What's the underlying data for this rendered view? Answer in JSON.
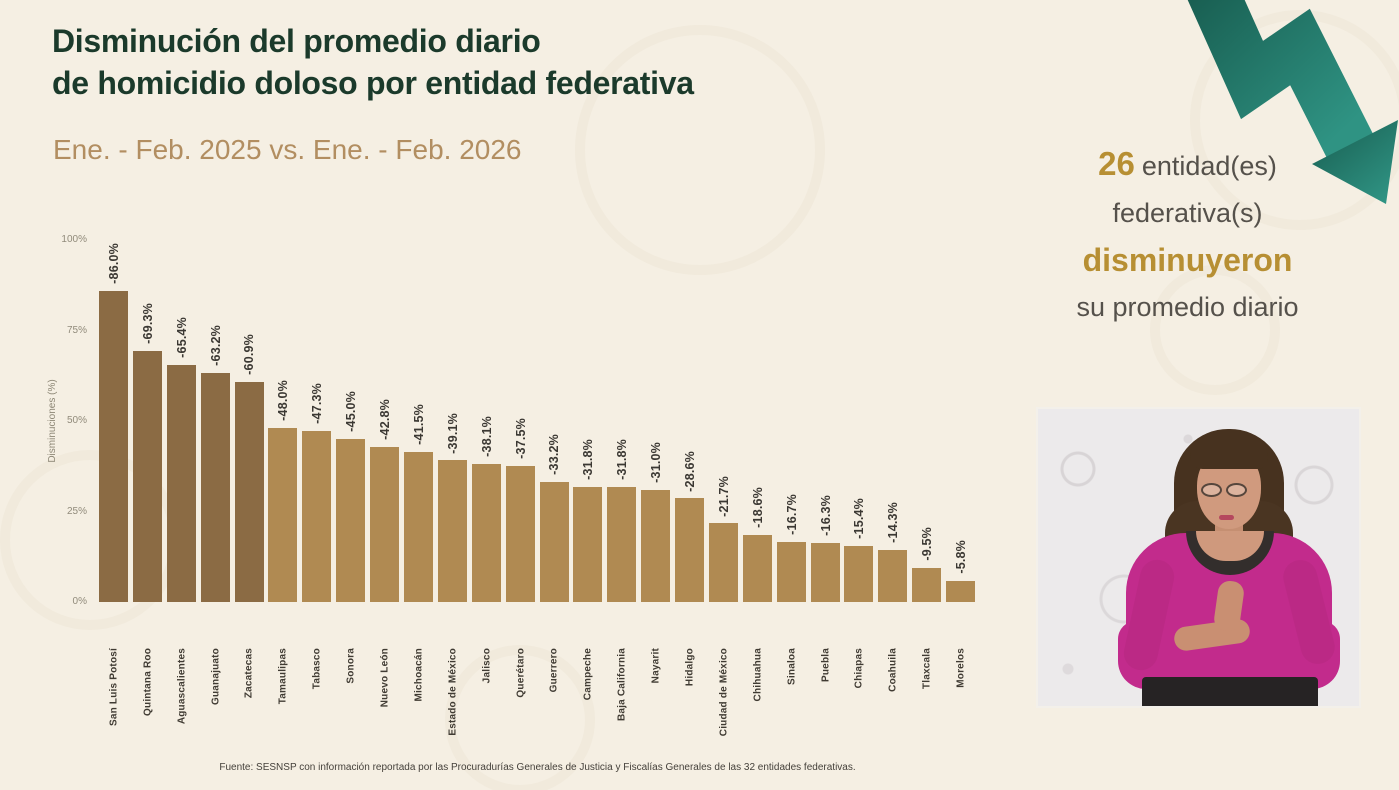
{
  "header": {
    "title_line1": "Disminución del promedio diario",
    "title_line2": "de homicidio doloso por entidad federativa",
    "subtitle": "Ene. - Feb. 2025 vs. Ene. - Feb. 2026"
  },
  "chart_data": {
    "type": "bar",
    "title": "Disminución del promedio diario de homicidio doloso por entidad federativa",
    "xlabel": "",
    "ylabel": "Disminuciones (%)",
    "ylim": [
      0,
      100
    ],
    "yticks": [
      {
        "label": "100%",
        "value": 100
      },
      {
        "label": "75%",
        "value": 75
      },
      {
        "label": "50%",
        "value": 50
      },
      {
        "label": "25%",
        "value": 25
      },
      {
        "label": "0%",
        "value": 0
      }
    ],
    "grid": false,
    "legend": false,
    "categories": [
      "San Luis Potosí",
      "Quintana Roo",
      "Aguascalientes",
      "Guanajuato",
      "Zacatecas",
      "Tamaulipas",
      "Tabasco",
      "Sonora",
      "Nuevo León",
      "Michoacán",
      "Estado de México",
      "Jalisco",
      "Querétaro",
      "Guerrero",
      "Campeche",
      "Baja California",
      "Nayarit",
      "Hidalgo",
      "Ciudad de México",
      "Chihuahua",
      "Sinaloa",
      "Puebla",
      "Chiapas",
      "Coahuila",
      "Tlaxcala",
      "Morelos"
    ],
    "values": [
      -86.0,
      -69.3,
      -65.4,
      -63.2,
      -60.9,
      -48.0,
      -47.3,
      -45.0,
      -42.8,
      -41.5,
      -39.1,
      -38.1,
      -37.5,
      -33.2,
      -31.8,
      -31.8,
      -31.0,
      -28.6,
      -21.7,
      -18.6,
      -16.7,
      -16.3,
      -15.4,
      -14.3,
      -9.5,
      -5.8
    ],
    "bar_labels": [
      "-86.0%",
      "-69.3%",
      "-65.4%",
      "-63.2%",
      "-60.9%",
      "-48.0%",
      "-47.3%",
      "-45.0%",
      "-42.8%",
      "-41.5%",
      "-39.1%",
      "-38.1%",
      "-37.5%",
      "-33.2%",
      "-31.8%",
      "-31.8%",
      "-31.0%",
      "-28.6%",
      "-21.7%",
      "-18.6%",
      "-16.7%",
      "-16.3%",
      "-15.4%",
      "-14.3%",
      "-9.5%",
      "-5.8%"
    ],
    "bar_color_dark": "#8B6B44",
    "bar_color_light": "#B08A52",
    "dark_bar_count": 5
  },
  "side_panel": {
    "count": "26",
    "line1_rest": "entidad(es)",
    "line2": "federativa(s)",
    "line3": "disminuyeron",
    "line4": "su promedio diario"
  },
  "footer": {
    "source": "Fuente: SESNSP con información reportada por las Procuradurías Generales de Justicia y Fiscalías Generales de las 32 entidades federativas."
  },
  "colors": {
    "background": "#F5EFE3",
    "title_green": "#1B3A2B",
    "subtitle_tan": "#B28E61",
    "gold_accent": "#B78F33",
    "gray_text": "#55514B",
    "arrow_teal_dark": "#185D50",
    "arrow_teal_light": "#2F9383",
    "interpreter_sweater": "#C22B8C"
  }
}
